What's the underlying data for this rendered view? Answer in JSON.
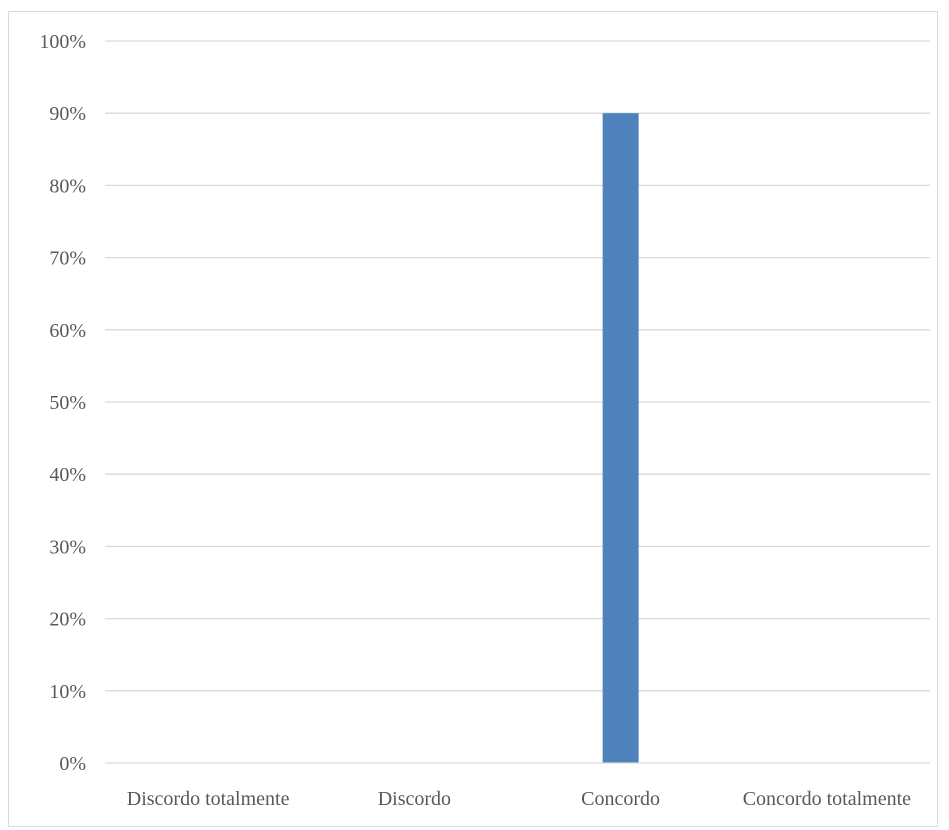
{
  "chart_data": {
    "type": "bar",
    "categories": [
      "Discordo totalmente",
      "Discordo",
      "Concordo",
      "Concordo totalmente"
    ],
    "values": [
      0,
      0,
      90,
      0
    ],
    "ylim": [
      0,
      100
    ],
    "yticks": [
      0,
      10,
      20,
      30,
      40,
      50,
      60,
      70,
      80,
      90,
      100
    ],
    "y_tick_suffix": "%",
    "grid": true,
    "legend": "none",
    "colors": {
      "bar": "#4f81bd",
      "grid": "#d9d9d9",
      "axis": "#d9d9d9",
      "text": "#595959"
    }
  }
}
